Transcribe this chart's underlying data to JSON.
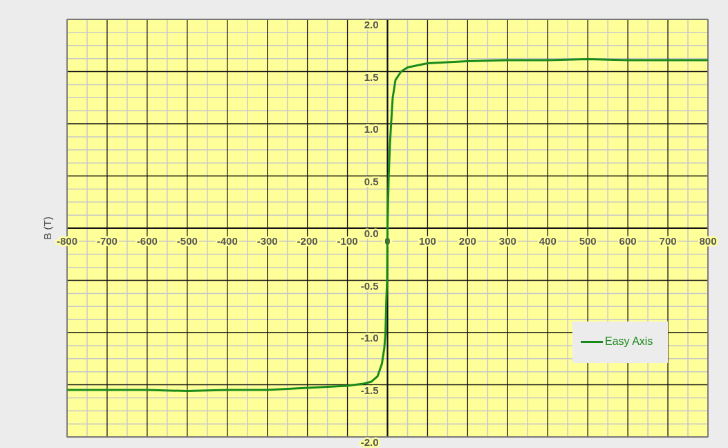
{
  "chart_data": {
    "type": "line",
    "ylabel": "B (T)",
    "legend": "bottom right",
    "grid": true,
    "marker": "none",
    "line_style": "solid",
    "xlim": [
      -800,
      800
    ],
    "xticks": [
      -800,
      -700,
      -600,
      -500,
      -400,
      -300,
      -200,
      -100,
      0,
      100,
      200,
      300,
      400,
      500,
      600,
      700,
      800
    ],
    "ylim": [
      -2,
      2
    ],
    "yticks": [
      {
        "value": -2,
        "label": "-2.0"
      },
      {
        "value": -1.5,
        "label": "-1.5"
      },
      {
        "value": -1,
        "label": "-1.0"
      },
      {
        "value": -0.5,
        "label": "-0.5"
      },
      {
        "value": 0,
        "label": "0.0"
      },
      {
        "value": 0.5,
        "label": "0.5"
      },
      {
        "value": 1,
        "label": "1.0"
      },
      {
        "value": 1.5,
        "label": "1.5"
      },
      {
        "value": 2,
        "label": "2.0"
      }
    ],
    "x": [
      -800,
      -700,
      -600,
      -500,
      -400,
      -300,
      -200,
      -150,
      -100,
      -60,
      -40,
      -25,
      -14,
      -8,
      -5,
      -3,
      -1,
      0,
      3,
      6,
      9,
      13,
      20,
      34,
      50,
      100,
      200,
      300,
      400,
      500,
      600,
      700,
      800
    ],
    "series": [
      {
        "name": "Easy Axis",
        "color": "#1a8a1a",
        "values": [
          -1.55,
          -1.55,
          -1.55,
          -1.56,
          -1.55,
          -1.55,
          -1.53,
          -1.52,
          -1.51,
          -1.49,
          -1.47,
          -1.42,
          -1.3,
          -1.15,
          -1.0,
          -0.7,
          -0.5,
          0,
          0.5,
          0.8,
          1.0,
          1.25,
          1.42,
          1.5,
          1.54,
          1.58,
          1.6,
          1.61,
          1.61,
          1.62,
          1.61,
          1.61,
          1.61
        ]
      }
    ]
  }
}
